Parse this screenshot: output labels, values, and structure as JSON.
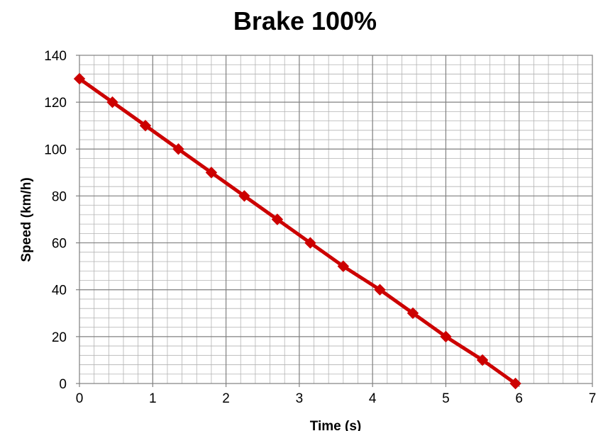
{
  "chart_data": {
    "type": "line",
    "title": "Brake 100%",
    "xlabel": "Time (s)",
    "ylabel": "Speed (km/h)",
    "xlim": [
      0,
      7
    ],
    "ylim": [
      0,
      140
    ],
    "x_ticks": [
      "0",
      "1",
      "2",
      "3",
      "4",
      "5",
      "6",
      "7"
    ],
    "y_ticks": [
      "0",
      "20",
      "40",
      "60",
      "80",
      "100",
      "120",
      "140"
    ],
    "grid": true,
    "legend": "none",
    "series": [
      {
        "color": "#cc0000",
        "marker": "diamond",
        "x": [
          0,
          0.45,
          0.9,
          1.35,
          1.8,
          2.25,
          2.7,
          3.15,
          3.6,
          4.1,
          4.55,
          5.0,
          5.5,
          5.95
        ],
        "y": [
          130,
          120,
          110,
          100,
          90,
          80,
          70,
          60,
          50,
          40,
          30,
          20,
          10,
          0
        ]
      }
    ]
  }
}
